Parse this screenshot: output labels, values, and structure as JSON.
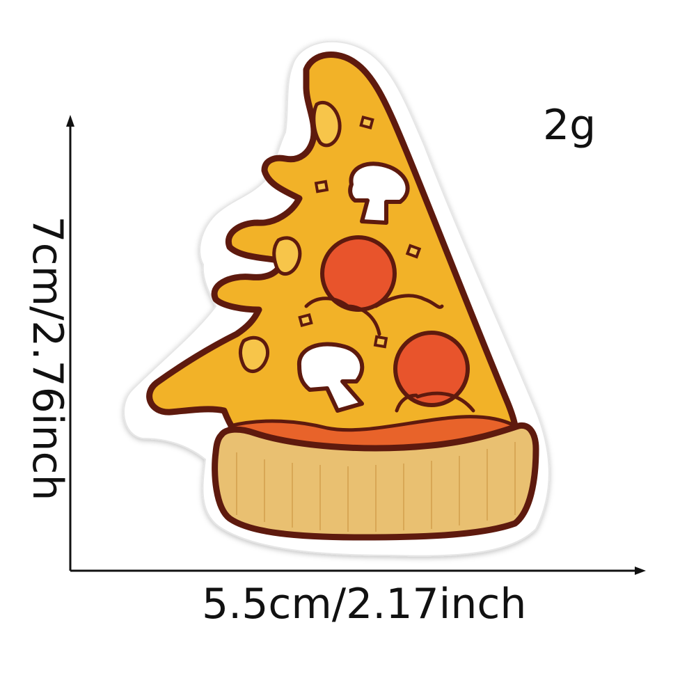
{
  "product": {
    "name_icon": "pizza-slice-patch",
    "weight": "2g",
    "height_label": "7cm/2.76inch",
    "width_label": "5.5cm/2.17inch"
  },
  "colors": {
    "outline": "#5e1a0e",
    "cheese": "#f2b228",
    "cheese_highlight": "#f7c54a",
    "pepperoni": "#e8542c",
    "mushroom": "#ffffff",
    "crust": "#e9c071",
    "sauce_edge": "#e8632a",
    "patch_border": "#ffffff",
    "text": "#111111"
  }
}
